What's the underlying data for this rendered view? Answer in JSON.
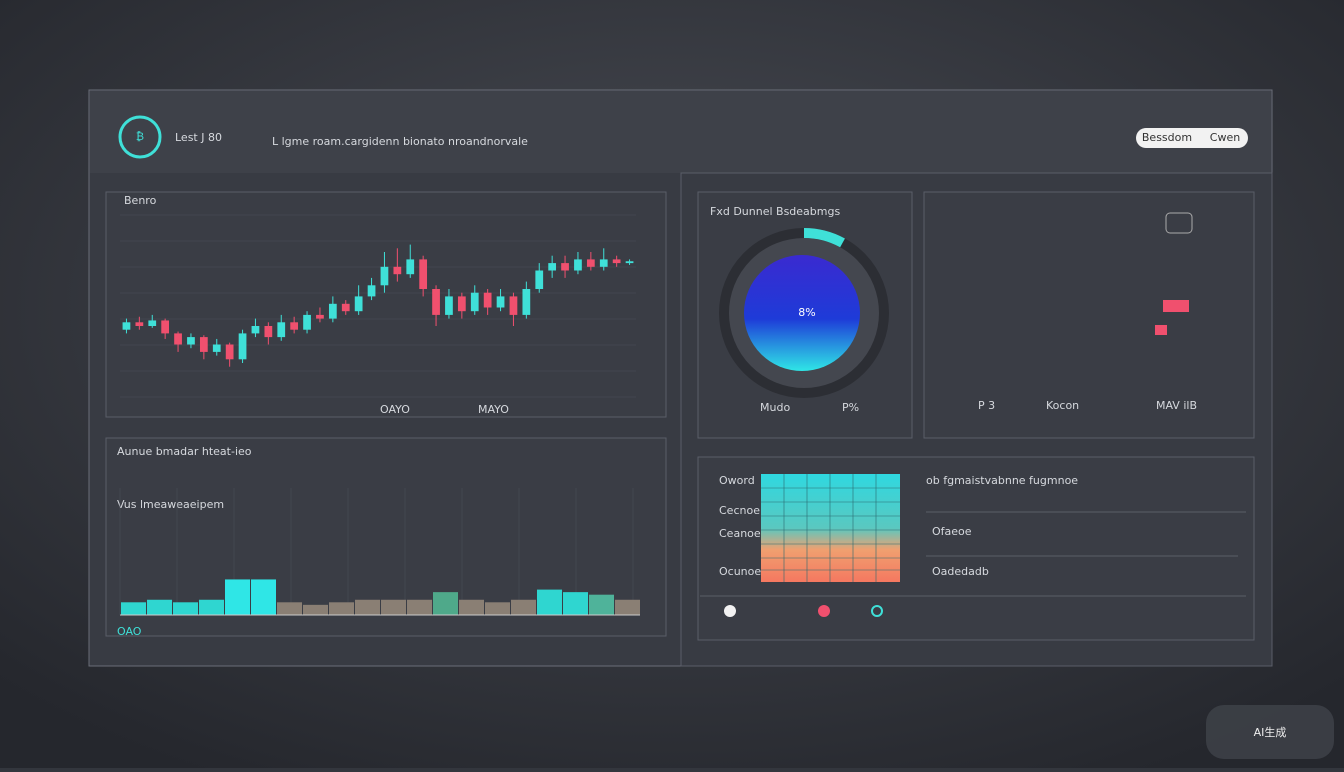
{
  "header": {
    "logo": "Lest J 80",
    "subtitle": "L lgme roam.cargidenn bionato nroandnorvale",
    "buttons": [
      "Bessdom",
      "Cwen"
    ]
  },
  "price_chart": {
    "type": "candlestick",
    "title": "Benro",
    "ylim": [
      0,
      100
    ],
    "up_color": "#3fe0d8",
    "down_color": "#f0506e",
    "legend": [
      "OAYO",
      "MAYO"
    ],
    "candles": [
      {
        "open": 38,
        "close": 42,
        "high": 44,
        "low": 36
      },
      {
        "open": 42,
        "close": 40,
        "high": 45,
        "low": 38
      },
      {
        "open": 40,
        "close": 43,
        "high": 46,
        "low": 39
      },
      {
        "open": 43,
        "close": 36,
        "high": 44,
        "low": 33
      },
      {
        "open": 36,
        "close": 30,
        "high": 37,
        "low": 26
      },
      {
        "open": 30,
        "close": 34,
        "high": 36,
        "low": 28
      },
      {
        "open": 34,
        "close": 26,
        "high": 35,
        "low": 22
      },
      {
        "open": 26,
        "close": 30,
        "high": 33,
        "low": 24
      },
      {
        "open": 30,
        "close": 22,
        "high": 31,
        "low": 18
      },
      {
        "open": 22,
        "close": 36,
        "high": 38,
        "low": 20
      },
      {
        "open": 36,
        "close": 40,
        "high": 44,
        "low": 34
      },
      {
        "open": 40,
        "close": 34,
        "high": 42,
        "low": 30
      },
      {
        "open": 34,
        "close": 42,
        "high": 46,
        "low": 32
      },
      {
        "open": 42,
        "close": 38,
        "high": 45,
        "low": 36
      },
      {
        "open": 38,
        "close": 46,
        "high": 48,
        "low": 36
      },
      {
        "open": 46,
        "close": 44,
        "high": 50,
        "low": 42
      },
      {
        "open": 44,
        "close": 52,
        "high": 56,
        "low": 42
      },
      {
        "open": 52,
        "close": 48,
        "high": 54,
        "low": 46
      },
      {
        "open": 48,
        "close": 56,
        "high": 62,
        "low": 46
      },
      {
        "open": 56,
        "close": 62,
        "high": 66,
        "low": 54
      },
      {
        "open": 62,
        "close": 72,
        "high": 80,
        "low": 58
      },
      {
        "open": 72,
        "close": 68,
        "high": 82,
        "low": 64
      },
      {
        "open": 68,
        "close": 76,
        "high": 84,
        "low": 66
      },
      {
        "open": 76,
        "close": 60,
        "high": 78,
        "low": 56
      },
      {
        "open": 60,
        "close": 46,
        "high": 62,
        "low": 40
      },
      {
        "open": 46,
        "close": 56,
        "high": 60,
        "low": 44
      },
      {
        "open": 56,
        "close": 48,
        "high": 58,
        "low": 44
      },
      {
        "open": 48,
        "close": 58,
        "high": 62,
        "low": 46
      },
      {
        "open": 58,
        "close": 50,
        "high": 60,
        "low": 46
      },
      {
        "open": 50,
        "close": 56,
        "high": 60,
        "low": 48
      },
      {
        "open": 56,
        "close": 46,
        "high": 58,
        "low": 40
      },
      {
        "open": 46,
        "close": 60,
        "high": 64,
        "low": 44
      },
      {
        "open": 60,
        "close": 70,
        "high": 74,
        "low": 58
      },
      {
        "open": 70,
        "close": 74,
        "high": 78,
        "low": 66
      },
      {
        "open": 74,
        "close": 70,
        "high": 78,
        "low": 66
      },
      {
        "open": 70,
        "close": 76,
        "high": 80,
        "low": 68
      },
      {
        "open": 76,
        "close": 72,
        "high": 80,
        "low": 70
      },
      {
        "open": 72,
        "close": 76,
        "high": 82,
        "low": 70
      },
      {
        "open": 76,
        "close": 74,
        "high": 78,
        "low": 72
      },
      {
        "open": 74,
        "close": 75,
        "high": 76,
        "low": 73
      }
    ]
  },
  "volume_chart": {
    "type": "bar",
    "title": "Aunue bmadar hteat-ieo",
    "subtitle": "Vus lmeaweaeipem",
    "footer": "OAO",
    "ylim": [
      0,
      100
    ],
    "values": [
      10,
      12,
      10,
      12,
      28,
      28,
      10,
      8,
      10,
      12,
      12,
      12,
      18,
      12,
      10,
      12,
      20,
      18,
      16,
      12
    ],
    "colors": [
      "#2fd6d0",
      "#2fd6d0",
      "#2fd6d0",
      "#2fd6d0",
      "#2fe6e6",
      "#2fe6e6",
      "#8a7f74",
      "#8a7f74",
      "#8a7f74",
      "#8a7f74",
      "#8a7f74",
      "#8a7f74",
      "#4fa98a",
      "#8a7f74",
      "#8a7f74",
      "#8a7f74",
      "#2fd6d0",
      "#2fd6d0",
      "#4fb39a",
      "#8a7f74"
    ]
  },
  "gauge": {
    "title": "Fxd Dunnel Bsdeabmgs",
    "value": 8,
    "value_label": "8%",
    "footer": [
      "Mudo",
      "P%"
    ]
  },
  "stats": {
    "labels": [
      "P 3",
      "Kocon",
      "MAV ilB"
    ]
  },
  "heat_panel": {
    "title": "ob fgmaistvabnne fugmnoe",
    "row_labels": [
      "Oword",
      "Cecnoe",
      "Ceanoe",
      "Ocunoe"
    ],
    "rows": [
      "Ofaeoe",
      "Oadedadb"
    ]
  },
  "watermark": "AI生成"
}
